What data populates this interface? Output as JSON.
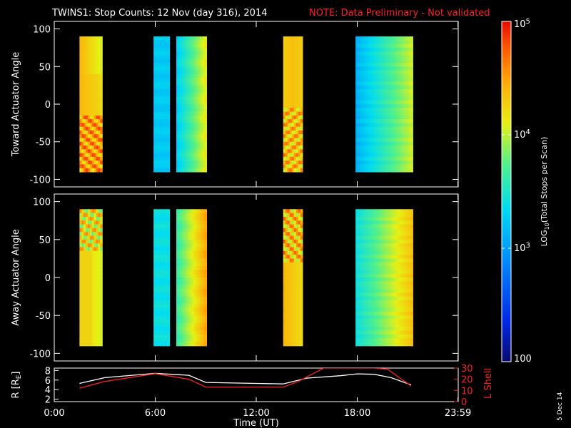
{
  "title": "TWINS1: Stop Counts: 12 Nov (day 316), 2014",
  "note": "NOTE: Data Preliminary - Not validated",
  "date_stamp": "5 Dec 14",
  "colors": {
    "background": "#000000",
    "note": "#ff2020",
    "r_line": "#ffffff",
    "lshell_line": "#ff2020"
  },
  "chart_data": [
    {
      "type": "heatmap",
      "name": "toward",
      "ylabel": "Toward Actuator Angle",
      "ylim": [
        -110,
        110
      ],
      "yticks": [
        100,
        50,
        0,
        -50,
        -100
      ],
      "xlim": [
        0,
        24
      ],
      "angle_range": [
        -90,
        90
      ],
      "blocks": [
        {
          "t0": 1.5,
          "t1": 2.85,
          "base_log": 4.35,
          "variant": "toward1"
        },
        {
          "t0": 5.9,
          "t1": 6.85,
          "base_log": 3.25,
          "variant": "flat"
        },
        {
          "t0": 7.25,
          "t1": 9.05,
          "base_log": 3.25,
          "variant": "ramp"
        },
        {
          "t0": 13.6,
          "t1": 14.75,
          "base_log": 4.35,
          "variant": "toward2"
        },
        {
          "t0": 17.9,
          "t1": 21.3,
          "base_log": 3.1,
          "variant": "ramp2"
        }
      ]
    },
    {
      "type": "heatmap",
      "name": "away",
      "ylabel": "Away Actuator Angle",
      "ylim": [
        -110,
        110
      ],
      "yticks": [
        100,
        50,
        0,
        -50,
        -100
      ],
      "xlim": [
        0,
        24
      ],
      "angle_range": [
        -90,
        90
      ],
      "blocks": [
        {
          "t0": 1.5,
          "t1": 2.85,
          "base_log": 4.2,
          "variant": "away1"
        },
        {
          "t0": 5.9,
          "t1": 6.85,
          "base_log": 3.4,
          "variant": "flat"
        },
        {
          "t0": 7.25,
          "t1": 9.05,
          "base_log": 3.6,
          "variant": "ramp"
        },
        {
          "t0": 13.6,
          "t1": 14.75,
          "base_log": 4.35,
          "variant": "away2"
        },
        {
          "t0": 17.9,
          "t1": 21.3,
          "base_log": 3.4,
          "variant": "ramp2"
        }
      ]
    },
    {
      "type": "line",
      "name": "orbit",
      "xlabel": "Time (UT)",
      "xticks": [
        "0:00",
        "6:00",
        "12:00",
        "18:00",
        "23:59"
      ],
      "xtick_hours": [
        0,
        6,
        12,
        18,
        23.983
      ],
      "xlim": [
        0,
        24
      ],
      "ylabel_left": "R [R",
      "ylabel_left_sub": "E",
      "ylabel_left_end": "]",
      "ylim_left": [
        1.5,
        8.5
      ],
      "yticks_left": [
        8,
        6,
        4,
        2
      ],
      "ylabel_right": "L Shell",
      "ylim_right": [
        0,
        30
      ],
      "yticks_right": [
        30,
        20,
        10,
        0
      ],
      "series": [
        {
          "axis": "left",
          "x": [
            1.5,
            3,
            6,
            8,
            9,
            12,
            13.6,
            15,
            17,
            18,
            19,
            20,
            21.2
          ],
          "y": [
            5.3,
            6.5,
            7.4,
            7.0,
            5.5,
            5.3,
            5.2,
            6.4,
            6.9,
            7.3,
            7.2,
            6.5,
            5.0
          ]
        },
        {
          "axis": "right",
          "x": [
            1.5,
            3,
            6,
            8,
            9,
            12,
            13.6,
            14.5,
            16.0,
            19.0,
            19.8,
            21.2
          ],
          "y": [
            12,
            18,
            25,
            20,
            13,
            13,
            13,
            18,
            30,
            30,
            29,
            14
          ]
        }
      ]
    }
  ],
  "colorbar": {
    "label": "LOG10(Total Stops per Scan)",
    "label_main": "LOG",
    "label_sub": "10",
    "label_rest": "(Total Stops per Scan)",
    "ticks": [
      {
        "log": 5,
        "base": "10",
        "exp": "5"
      },
      {
        "log": 4,
        "base": "10",
        "exp": "4"
      },
      {
        "log": 3,
        "base": "10",
        "exp": "3"
      },
      {
        "log": 2,
        "text": "100"
      }
    ],
    "range_log": [
      2,
      5
    ]
  }
}
